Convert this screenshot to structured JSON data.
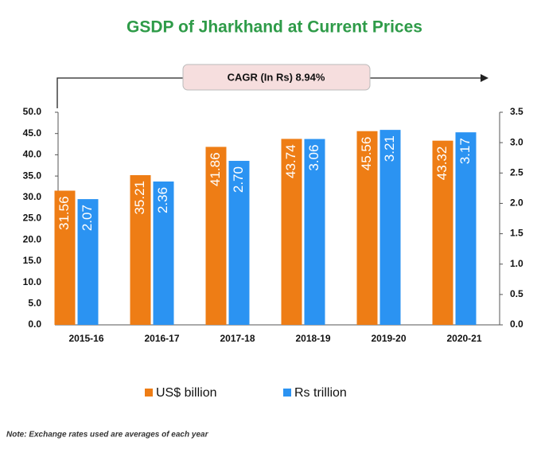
{
  "chart_data": {
    "type": "bar",
    "title": "GSDP of Jharkhand at Current Prices",
    "annotation": "CAGR  (In Rs) 8.94%",
    "note": "Note: Exchange rates used are averages of each year",
    "categories": [
      "2015-16",
      "2016-17",
      "2017-18",
      "2018-19",
      "2019-20",
      "2020-21"
    ],
    "series": [
      {
        "name": "US$ billion",
        "color": "#ee7d15",
        "values": [
          31.56,
          35.21,
          41.86,
          43.74,
          45.56,
          43.32
        ]
      },
      {
        "name": "Rs trillion",
        "color": "#2b93f2",
        "axis": "y2",
        "values": [
          2.07,
          2.36,
          2.7,
          3.06,
          3.21,
          3.17
        ],
        "value_labels": [
          "2.07",
          "2.36",
          "2.70",
          "3.06",
          "3.21",
          "3.17"
        ]
      }
    ],
    "ylim": [
      0,
      50
    ],
    "yticks": [
      {
        "value": 0,
        "label": "0.0"
      },
      {
        "value": 5,
        "label": "5.0"
      },
      {
        "value": 10,
        "label": "10.0"
      },
      {
        "value": 15,
        "label": "15.0"
      },
      {
        "value": 20,
        "label": "20.0"
      },
      {
        "value": 25,
        "label": "25.0"
      },
      {
        "value": 30,
        "label": "30.0"
      },
      {
        "value": 35,
        "label": "35.0"
      },
      {
        "value": 40,
        "label": "40.0"
      },
      {
        "value": 45,
        "label": "45.0"
      },
      {
        "value": 50,
        "label": "50.0"
      }
    ],
    "y2lim": [
      0,
      3.5
    ],
    "y2ticks": [
      {
        "value": 0,
        "label": "0.0"
      },
      0.5,
      {
        "value": 1,
        "label": "1.0"
      },
      1.5,
      {
        "value": 2,
        "label": "2.0"
      },
      2.5,
      {
        "value": 3,
        "label": "3.0"
      },
      3.5
    ],
    "grid": false
  }
}
